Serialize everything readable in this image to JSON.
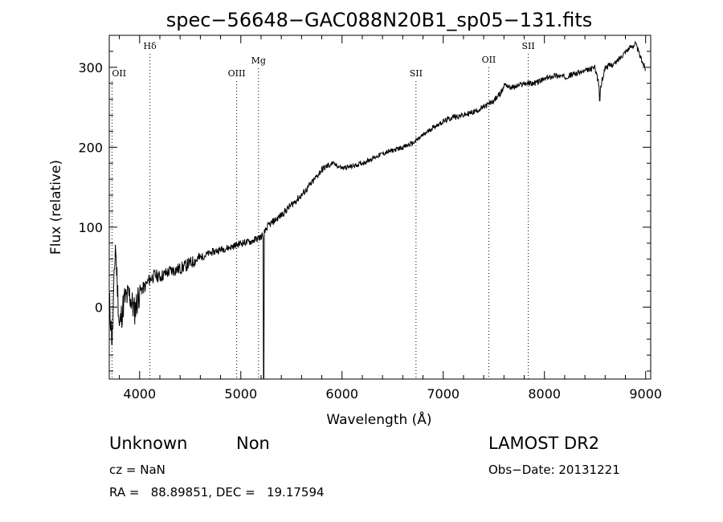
{
  "chart_data": {
    "type": "line",
    "title": "spec−56648−GAC088N20B1_sp05−131.fits",
    "xlabel": "Wavelength (Å)",
    "ylabel": "Flux (relative)",
    "xlim": [
      3700,
      9050
    ],
    "ylim": [
      -90,
      340
    ],
    "xticks": [
      4000,
      5000,
      6000,
      7000,
      8000,
      9000
    ],
    "yticks": [
      0,
      100,
      200,
      300
    ],
    "grid": false,
    "series": [
      {
        "x": [
          3700,
          3730,
          3760,
          3800,
          3850,
          3900,
          3950,
          4000,
          4050,
          4100,
          4150,
          4200,
          4300,
          4400,
          4500,
          4600,
          4700,
          4800,
          4900,
          5000,
          5100,
          5150,
          5200,
          5230,
          5260,
          5300,
          5400,
          5500,
          5600,
          5700,
          5800,
          5900,
          6000,
          6100,
          6200,
          6300,
          6400,
          6500,
          6600,
          6700,
          6800,
          6900,
          7000,
          7100,
          7200,
          7300,
          7400,
          7500,
          7580,
          7610,
          7650,
          7700,
          7800,
          7900,
          8000,
          8100,
          8200,
          8300,
          8400,
          8500,
          8550,
          8600,
          8700,
          8800,
          8900,
          8950,
          9000
        ],
        "y": [
          10,
          -45,
          80,
          -25,
          10,
          15,
          -5,
          20,
          25,
          35,
          40,
          38,
          45,
          48,
          55,
          62,
          68,
          72,
          75,
          80,
          82,
          85,
          88,
          92,
          100,
          105,
          115,
          128,
          140,
          155,
          172,
          180,
          174,
          176,
          180,
          186,
          192,
          196,
          200,
          205,
          215,
          225,
          232,
          238,
          240,
          244,
          250,
          258,
          270,
          280,
          275,
          275,
          280,
          280,
          285,
          290,
          288,
          292,
          295,
          300,
          272,
          300,
          305,
          320,
          330,
          312,
          298
        ]
      }
    ],
    "line_markers": [
      {
        "label": "OII",
        "x": 3727
      },
      {
        "label": "Hδ",
        "x": 4102
      },
      {
        "label": "OIII",
        "x": 4959
      },
      {
        "label": "Mg",
        "x": 5175
      },
      {
        "label": "SII",
        "x": 6731
      },
      {
        "label": "OII",
        "x": 7450
      },
      {
        "label": "SII",
        "x": 7840
      }
    ]
  },
  "info": {
    "object_class": "Unknown",
    "subclass": "Non",
    "survey": "LAMOST DR2",
    "cz": "cz = NaN",
    "obs_date": "Obs−Date: 20131221",
    "coords": "RA =   88.89851, DEC =   19.17594"
  }
}
